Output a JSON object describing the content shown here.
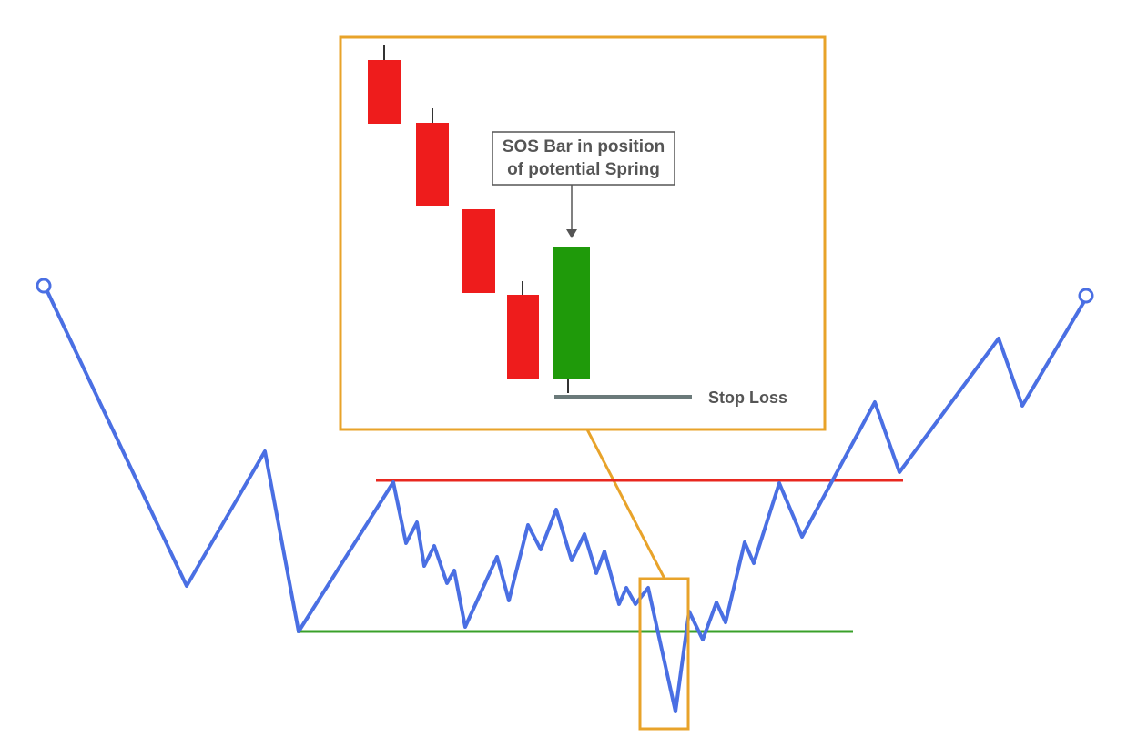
{
  "colors": {
    "price_line": "#4a6fe3",
    "resistance": "#e8281f",
    "support": "#3aa02a",
    "zoom_box": "#e8a32a",
    "bearish_candle": "#ee1c1c",
    "bullish_candle": "#1f9a0a",
    "stop_loss": "#6b7a7a",
    "annotation_text": "#555555"
  },
  "annotation": {
    "line1": "SOS Bar in position",
    "line2": "of potential Spring"
  },
  "stop_loss_label": "Stop Loss"
}
